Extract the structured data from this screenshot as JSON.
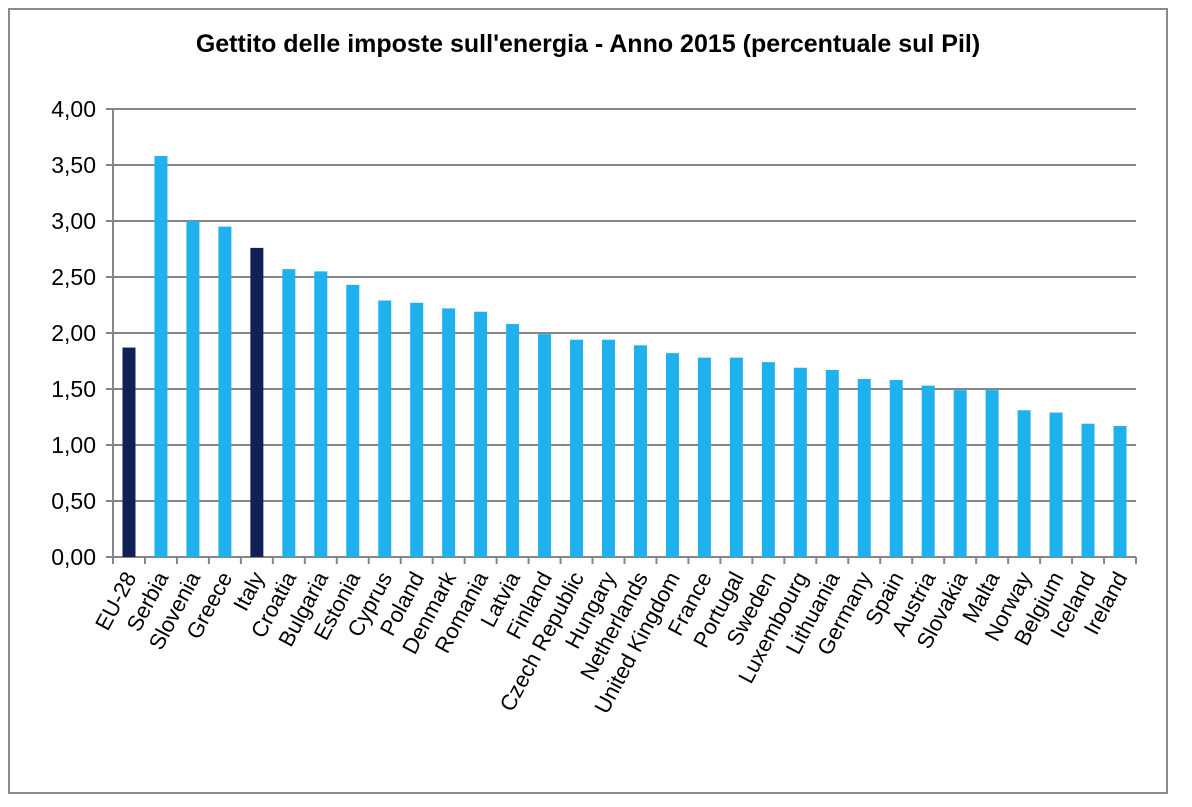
{
  "chart_data": {
    "type": "bar",
    "title": "Gettito delle imposte sull'energia - Anno 2015 (percentuale sul Pil)",
    "xlabel": "",
    "ylabel": "",
    "ylim": [
      0,
      4
    ],
    "yticks": [
      "0,00",
      "0,50",
      "1,00",
      "1,50",
      "2,00",
      "2,50",
      "3,00",
      "3,50",
      "4,00"
    ],
    "grid": true,
    "legend": "none",
    "categories": [
      "EU-28",
      "Serbia",
      "Slovenia",
      "Greece",
      "Italy",
      "Croatia",
      "Bulgaria",
      "Estonia",
      "Cyprus",
      "Poland",
      "Denmark",
      "Romania",
      "Latvia",
      "Finland",
      "Czech Republic",
      "Hungary",
      "Netherlands",
      "United Kingdom",
      "France",
      "Portugal",
      "Sweden",
      "Luxembourg",
      "Lithuania",
      "Germany",
      "Spain",
      "Austria",
      "Slovakia",
      "Malta",
      "Norway",
      "Belgium",
      "Iceland",
      "Ireland"
    ],
    "values": [
      1.87,
      3.58,
      3.0,
      2.95,
      2.76,
      2.57,
      2.55,
      2.43,
      2.29,
      2.27,
      2.22,
      2.19,
      2.08,
      1.99,
      1.94,
      1.94,
      1.89,
      1.82,
      1.78,
      1.78,
      1.74,
      1.69,
      1.67,
      1.59,
      1.58,
      1.53,
      1.49,
      1.49,
      1.31,
      1.29,
      1.19,
      1.17
    ],
    "highlight": [
      "EU-28",
      "Italy"
    ],
    "colors": {
      "bar": "#1EB1EE",
      "highlight": "#0F2157",
      "grid": "#868686",
      "axis": "#868686"
    }
  }
}
